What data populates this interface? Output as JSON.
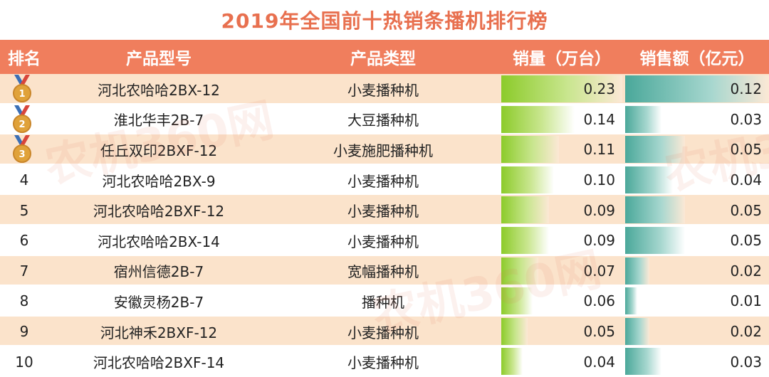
{
  "title": "2019年全国前十热销条播机排行榜",
  "headers": {
    "rank": "排名",
    "model": "产品型号",
    "type": "产品类型",
    "qty": "销量（万台）",
    "amount": "销售额（亿元）"
  },
  "colors": {
    "title": "#e8704f",
    "header_bg": "#f07e5d",
    "row_odd": "#fbe3cb",
    "qty_bar": "#8ccb2a",
    "amount_bar": "#4aa89a"
  },
  "medal_icons": [
    "gold-medal-icon",
    "silver-medal-icon",
    "bronze-medal-icon"
  ],
  "watermark": "农机360网",
  "chart_data": {
    "type": "table",
    "columns": [
      "排名",
      "产品型号",
      "产品类型",
      "销量（万台）",
      "销售额（亿元）"
    ],
    "qty_max": 0.23,
    "amount_max": 0.12,
    "rows": [
      {
        "rank": "1",
        "model": "河北农哈哈2BX-12",
        "type": "小麦播种机",
        "qty": "0.23",
        "amount": "0.12"
      },
      {
        "rank": "2",
        "model": "淮北华丰2B-7",
        "type": "大豆播种机",
        "qty": "0.14",
        "amount": "0.03"
      },
      {
        "rank": "3",
        "model": "任丘双印2BXF-12",
        "type": "小麦施肥播种机",
        "qty": "0.11",
        "amount": "0.05"
      },
      {
        "rank": "4",
        "model": "河北农哈哈2BX-9",
        "type": "小麦播种机",
        "qty": "0.10",
        "amount": "0.04"
      },
      {
        "rank": "5",
        "model": "河北农哈哈2BXF-12",
        "type": "小麦播种机",
        "qty": "0.09",
        "amount": "0.05"
      },
      {
        "rank": "6",
        "model": "河北农哈哈2BX-14",
        "type": "小麦播种机",
        "qty": "0.09",
        "amount": "0.05"
      },
      {
        "rank": "7",
        "model": "宿州信德2B-7",
        "type": "宽幅播种机",
        "qty": "0.07",
        "amount": "0.02"
      },
      {
        "rank": "8",
        "model": "安徽灵杨2B-7",
        "type": "播种机",
        "qty": "0.06",
        "amount": "0.01"
      },
      {
        "rank": "9",
        "model": "河北神禾2BXF-12",
        "type": "小麦播种机",
        "qty": "0.05",
        "amount": "0.02"
      },
      {
        "rank": "10",
        "model": "河北农哈哈2BXF-14",
        "type": "小麦播种机",
        "qty": "0.04",
        "amount": "0.03"
      }
    ]
  }
}
